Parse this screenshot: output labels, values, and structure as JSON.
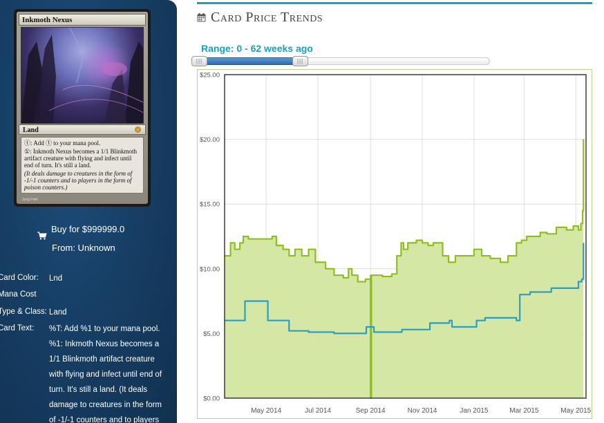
{
  "card": {
    "name": "Inkmoth Nexus",
    "type_line": "Land",
    "rules_text": [
      "ⓣ: Add ① to your mana pool.",
      "①: Inkmoth Nexus becomes a 1/1 Blinkmoth artifact creature with flying and infect until end of turn. It's still a land."
    ],
    "flavor_text": "(It deals damage to creatures in the form of -1/-1 counters and to players in the form of poison counters.)",
    "artist": "Jung Park"
  },
  "buy": {
    "price_label": "Buy for $999999.0",
    "from_label": "From: Unknown"
  },
  "info": {
    "color_label": "Card Color:",
    "color_value": "Lnd",
    "mana_label": "Mana Cost",
    "mana_value": "",
    "type_label": "Type & Class:",
    "type_value": "Land",
    "text_label": "Card Text:",
    "text_lines": [
      "%T: Add %1 to your mana pool.",
      "%1: Inkmoth Nexus becomes a",
      "1/1 Blinkmoth artifact creature",
      "with flying and infect until end of",
      "turn. It's still a land. (It deals",
      "damage to creatures in the form",
      "of -1/-1 counters and to players"
    ]
  },
  "section": {
    "title": "Card Price Trends"
  },
  "range": {
    "label": "Range: 0 - 62 weeks ago",
    "max_weeks": 62,
    "selected_fraction": 0.36
  },
  "colors": {
    "accent": "#12a3c4",
    "green_series": "#8fbf1e",
    "green_fill": "#d3e6a0",
    "blue_series": "#2a9ec0",
    "sidebar": "#173f66"
  },
  "chart_data": {
    "type": "line",
    "ylim": [
      0,
      25
    ],
    "yticks": [
      "$0.00",
      "$5.00",
      "$10.00",
      "$15.00",
      "$20.00",
      "$25.00"
    ],
    "ytick_values": [
      0,
      5,
      10,
      15,
      20,
      25
    ],
    "xlim": [
      "2014-03-13",
      "2015-05-13"
    ],
    "xticks": [
      {
        "label": "May 2014",
        "date": "2014-05-01"
      },
      {
        "label": "Jul 2014",
        "date": "2014-07-01"
      },
      {
        "label": "Sep 2014",
        "date": "2014-09-01"
      },
      {
        "label": "Nov 2014",
        "date": "2014-11-01"
      },
      {
        "label": "Jan 2015",
        "date": "2015-01-01"
      },
      {
        "label": "Mar 2015",
        "date": "2015-03-01"
      },
      {
        "label": "May 2015",
        "date": "2015-05-01"
      }
    ],
    "grid": true,
    "series": [
      {
        "color": "#8fbf1e",
        "fill": true,
        "points": [
          [
            "2014-03-13",
            11
          ],
          [
            "2014-03-20",
            12
          ],
          [
            "2014-03-25",
            11.5
          ],
          [
            "2014-03-31",
            12
          ],
          [
            "2014-04-04",
            12.5
          ],
          [
            "2014-04-10",
            12.3
          ],
          [
            "2014-05-08",
            12.5
          ],
          [
            "2014-05-13",
            11.8
          ],
          [
            "2014-05-21",
            11.5
          ],
          [
            "2014-05-28",
            11
          ],
          [
            "2014-06-04",
            11.5
          ],
          [
            "2014-06-12",
            11
          ],
          [
            "2014-06-20",
            11.5
          ],
          [
            "2014-06-28",
            10.5
          ],
          [
            "2014-07-10",
            10
          ],
          [
            "2014-07-20",
            9.5
          ],
          [
            "2014-07-31",
            9.3
          ],
          [
            "2014-08-06",
            10
          ],
          [
            "2014-08-10",
            9.5
          ],
          [
            "2014-08-17",
            9
          ],
          [
            "2014-08-26",
            9.2
          ],
          [
            "2014-09-01",
            9.5
          ],
          [
            "2014-09-01",
            0
          ],
          [
            "2014-09-02",
            9.5
          ],
          [
            "2014-09-15",
            9.4
          ],
          [
            "2014-09-26",
            9.6
          ],
          [
            "2014-10-02",
            11
          ],
          [
            "2014-10-07",
            12
          ],
          [
            "2014-10-10",
            11.5
          ],
          [
            "2014-10-15",
            12
          ],
          [
            "2014-10-25",
            12.2
          ],
          [
            "2014-11-01",
            12
          ],
          [
            "2014-11-08",
            11.8
          ],
          [
            "2014-11-14",
            12
          ],
          [
            "2014-11-25",
            11
          ],
          [
            "2014-12-02",
            10.5
          ],
          [
            "2014-12-10",
            11
          ],
          [
            "2014-12-23",
            11
          ],
          [
            "2015-01-01",
            11.5
          ],
          [
            "2015-01-10",
            11
          ],
          [
            "2015-01-20",
            10.8
          ],
          [
            "2015-02-01",
            10.5
          ],
          [
            "2015-02-10",
            11
          ],
          [
            "2015-02-15",
            11
          ],
          [
            "2015-02-20",
            12
          ],
          [
            "2015-02-26",
            12.2
          ],
          [
            "2015-03-04",
            12.5
          ],
          [
            "2015-03-10",
            12.5
          ],
          [
            "2015-03-20",
            12.8
          ],
          [
            "2015-03-28",
            12.7
          ],
          [
            "2015-04-08",
            13.2
          ],
          [
            "2015-04-20",
            13
          ],
          [
            "2015-04-28",
            13.3
          ],
          [
            "2015-05-04",
            13
          ],
          [
            "2015-05-07",
            13.5
          ],
          [
            "2015-05-09",
            14.5
          ],
          [
            "2015-05-10",
            20
          ]
        ]
      },
      {
        "color": "#2a9ec0",
        "fill": false,
        "points": [
          [
            "2014-03-13",
            6
          ],
          [
            "2014-04-02",
            6
          ],
          [
            "2014-04-06",
            7.5
          ],
          [
            "2014-04-28",
            7.5
          ],
          [
            "2014-05-03",
            6
          ],
          [
            "2014-05-24",
            6
          ],
          [
            "2014-05-28",
            5.2
          ],
          [
            "2014-06-20",
            5.1
          ],
          [
            "2014-07-20",
            5
          ],
          [
            "2014-08-14",
            5
          ],
          [
            "2014-08-27",
            5.5
          ],
          [
            "2014-09-05",
            5.1
          ],
          [
            "2014-10-08",
            5.3
          ],
          [
            "2014-11-10",
            5.8
          ],
          [
            "2014-12-03",
            6
          ],
          [
            "2014-12-06",
            5.5
          ],
          [
            "2015-01-04",
            6
          ],
          [
            "2015-01-14",
            6.2
          ],
          [
            "2015-02-13",
            6.2
          ],
          [
            "2015-02-20",
            6
          ],
          [
            "2015-02-24",
            8
          ],
          [
            "2015-03-08",
            8.2
          ],
          [
            "2015-04-02",
            8.5
          ],
          [
            "2015-05-04",
            9
          ],
          [
            "2015-05-08",
            9.2
          ],
          [
            "2015-05-10",
            12
          ]
        ]
      }
    ]
  }
}
